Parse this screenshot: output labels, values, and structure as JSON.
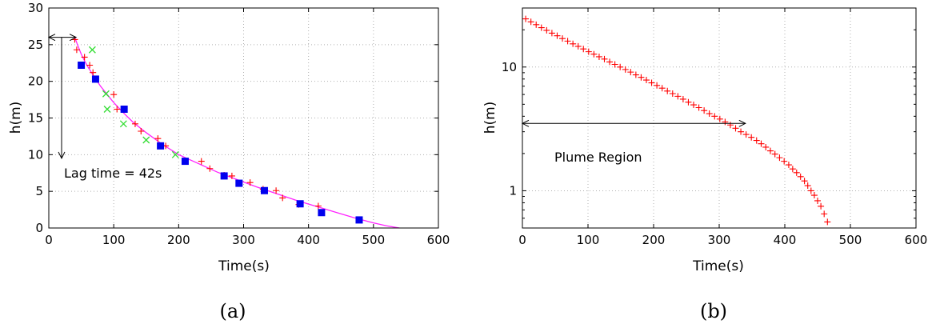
{
  "colors": {
    "fit_curve": "#ff22ff",
    "plus_series": "#ff0000",
    "cross_series": "#33dd33",
    "square_series": "#0000ee",
    "annotation": "#000000"
  },
  "chart_data": [
    {
      "type": "scatter",
      "caption": "(a)",
      "xlabel": "Time(s)",
      "ylabel": "h(m)",
      "xlim": [
        0,
        600
      ],
      "ylim": [
        0,
        30
      ],
      "xticks": [
        0,
        100,
        200,
        300,
        400,
        500,
        600
      ],
      "yticks": [
        0,
        5,
        10,
        15,
        20,
        25,
        30
      ],
      "grid": true,
      "annotation_text": "Lag time = 42s",
      "lag_time": 42,
      "series": [
        {
          "marker": "line",
          "x": [
            40,
            45,
            50,
            55,
            60,
            70,
            80,
            90,
            100,
            115,
            130,
            150,
            175,
            200,
            230,
            260,
            290,
            320,
            350,
            380,
            410,
            440,
            470,
            500,
            520,
            540
          ],
          "y": [
            26.0,
            24.8,
            23.7,
            22.8,
            22.0,
            20.6,
            19.3,
            18.2,
            17.1,
            15.7,
            14.4,
            13.0,
            11.4,
            10.0,
            8.8,
            7.6,
            6.6,
            5.6,
            4.7,
            3.8,
            3.0,
            2.2,
            1.4,
            0.7,
            0.3,
            0.0
          ]
        },
        {
          "marker": "plus",
          "x": [
            40,
            43,
            55,
            63,
            68,
            100,
            105,
            133,
            142,
            168,
            180,
            235,
            248,
            270,
            282,
            310,
            330,
            350,
            360,
            385,
            415
          ],
          "y": [
            25.7,
            24.3,
            23.3,
            22.2,
            21.2,
            18.2,
            16.2,
            14.2,
            13.2,
            12.2,
            11.2,
            9.1,
            8.1,
            7.2,
            7.1,
            6.2,
            5.3,
            5.1,
            4.1,
            3.2,
            3.0
          ]
        },
        {
          "marker": "cross",
          "x": [
            67,
            88,
            90,
            115,
            150,
            195
          ],
          "y": [
            24.3,
            18.3,
            16.2,
            14.2,
            12.0,
            10.0
          ]
        },
        {
          "marker": "square",
          "x": [
            50,
            72,
            116,
            172,
            210,
            270,
            293,
            332,
            387,
            420,
            478
          ],
          "y": [
            22.2,
            20.3,
            16.2,
            11.2,
            9.1,
            7.1,
            6.1,
            5.1,
            3.3,
            2.1,
            1.1
          ]
        }
      ]
    },
    {
      "type": "scatter",
      "caption": "(b)",
      "xlabel": "Time(s)",
      "ylabel": "h(m)",
      "xlim": [
        0,
        600
      ],
      "ylim": [
        0.5,
        30
      ],
      "yscale": "log",
      "xticks": [
        0,
        100,
        200,
        300,
        400,
        500,
        600
      ],
      "yticks": [
        1,
        10
      ],
      "grid": true,
      "annotation_text": "Plume Region",
      "region_end": 340,
      "region_level": 3.5,
      "series": [
        {
          "marker": "plus",
          "x": [
            5,
            13,
            21,
            29,
            37,
            45,
            53,
            61,
            69,
            77,
            85,
            93,
            101,
            109,
            117,
            125,
            133,
            141,
            149,
            157,
            165,
            173,
            181,
            189,
            197,
            205,
            213,
            221,
            229,
            237,
            245,
            253,
            261,
            269,
            277,
            285,
            293,
            301,
            309,
            317,
            325,
            333,
            341,
            349,
            357,
            364,
            371,
            378,
            385,
            392,
            399,
            406,
            412,
            418,
            424,
            430,
            435,
            440,
            445,
            450,
            455,
            460,
            465
          ],
          "y": [
            24.5,
            23.2,
            22.0,
            20.8,
            19.8,
            18.8,
            17.9,
            17.0,
            16.2,
            15.4,
            14.7,
            14.0,
            13.3,
            12.7,
            12.1,
            11.6,
            11.0,
            10.5,
            10.0,
            9.55,
            9.1,
            8.65,
            8.25,
            7.85,
            7.45,
            7.1,
            6.75,
            6.4,
            6.1,
            5.8,
            5.5,
            5.2,
            4.95,
            4.7,
            4.45,
            4.2,
            4.0,
            3.8,
            3.6,
            3.4,
            3.2,
            3.0,
            2.85,
            2.7,
            2.55,
            2.4,
            2.25,
            2.1,
            1.98,
            1.85,
            1.73,
            1.62,
            1.5,
            1.4,
            1.3,
            1.2,
            1.1,
            1.0,
            0.92,
            0.83,
            0.75,
            0.65,
            0.56
          ]
        }
      ]
    }
  ]
}
